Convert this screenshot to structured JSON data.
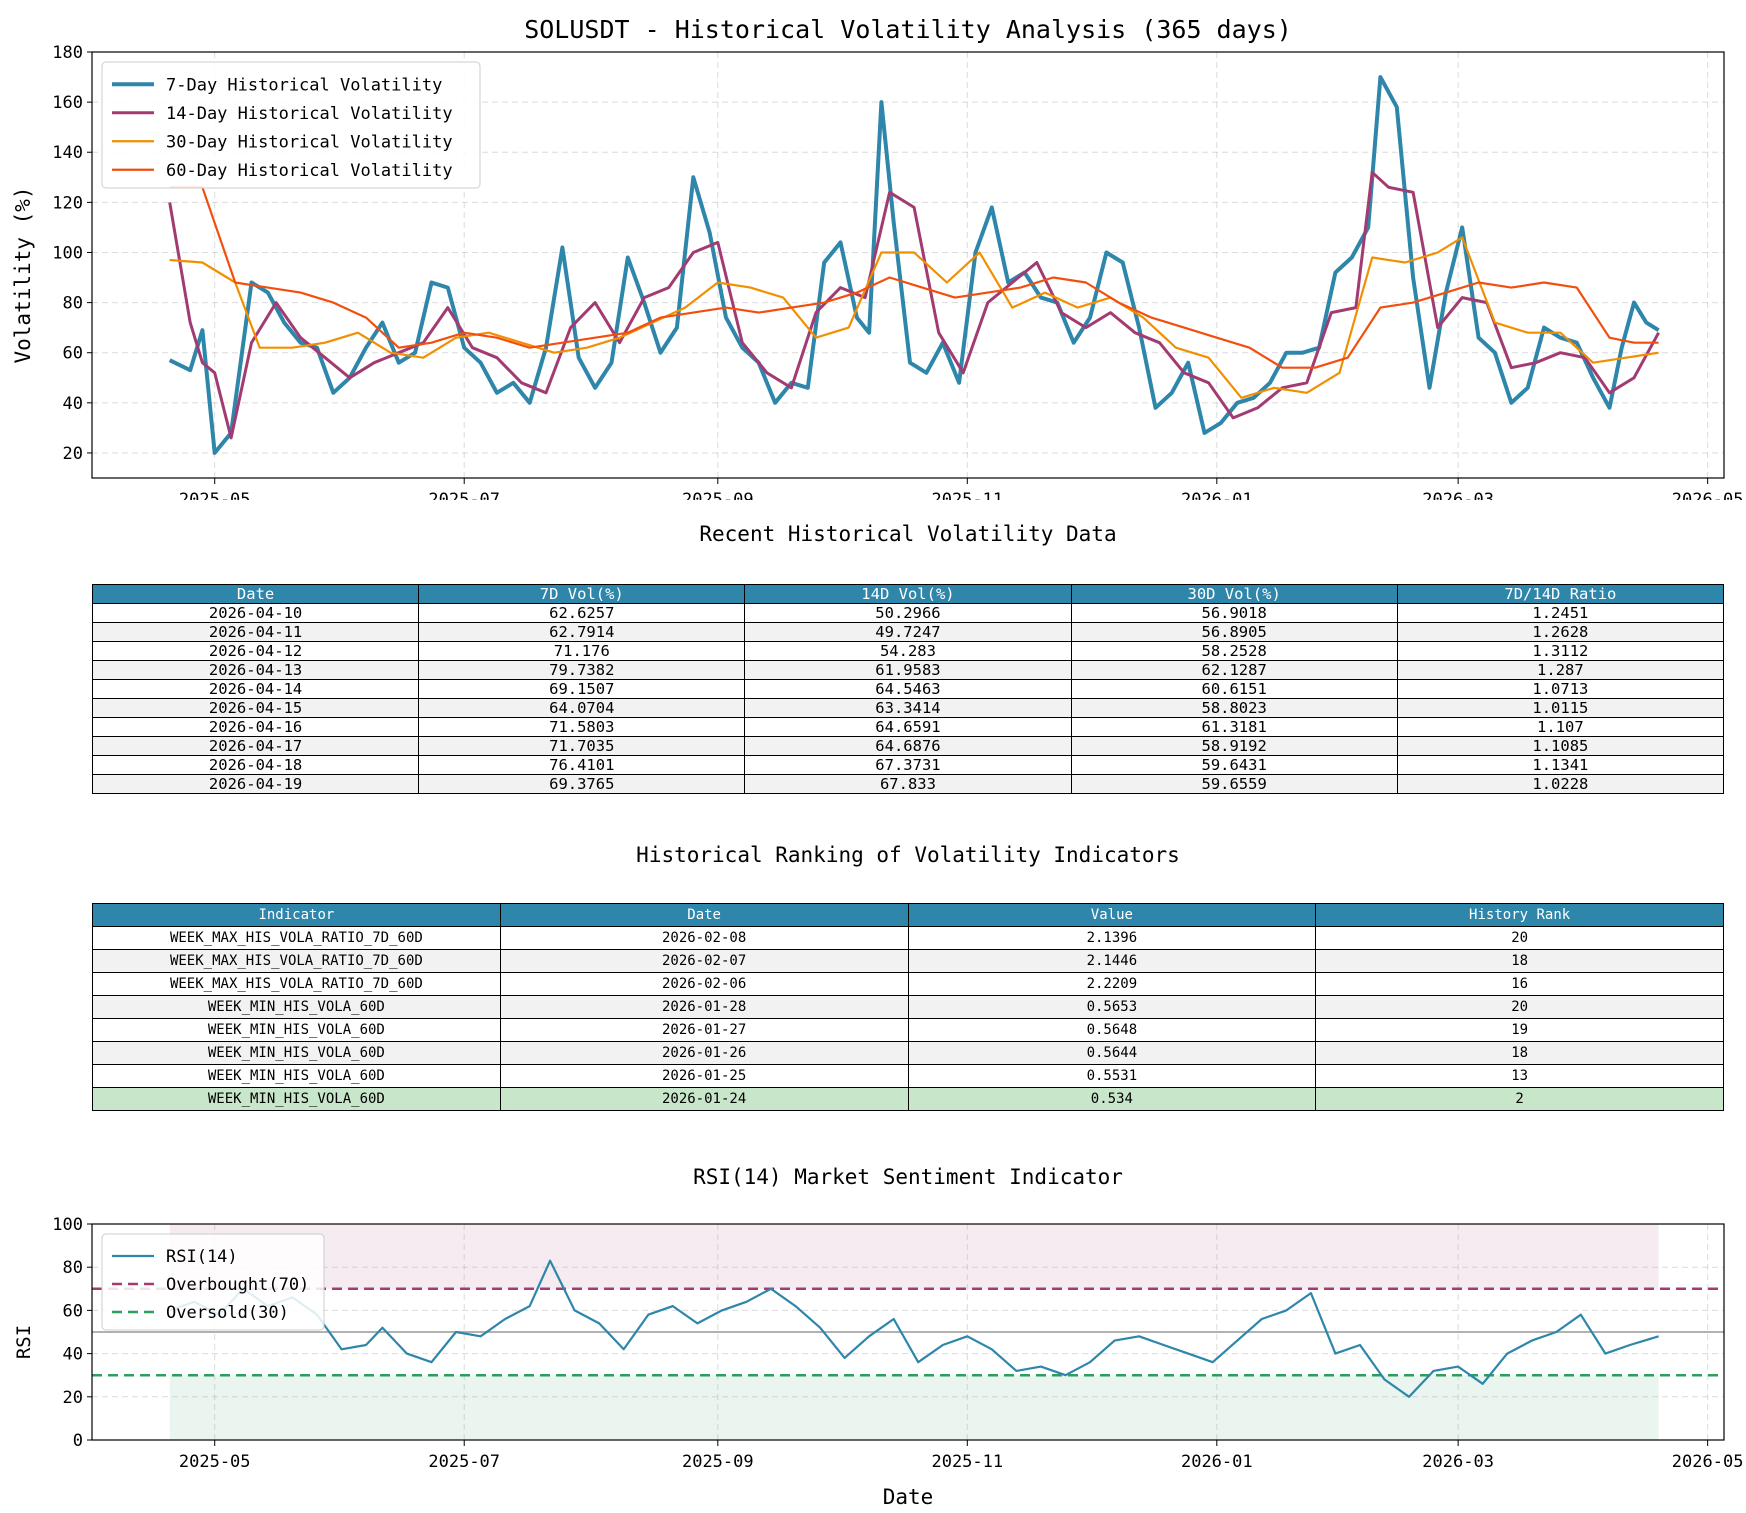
{
  "chart_data": [
    {
      "type": "line",
      "title": "SOLUSDT - Historical Volatility Analysis (365 days)",
      "xlabel": "",
      "ylabel": "Volatility (%)",
      "x_range": [
        "2025-04-01",
        "2026-05-05"
      ],
      "ylim": [
        10,
        180
      ],
      "yticks": [
        20,
        40,
        60,
        80,
        100,
        120,
        140,
        160,
        180
      ],
      "xticks": [
        "2025-05",
        "2025-07",
        "2025-09",
        "2025-11",
        "2026-01",
        "2026-03",
        "2026-05"
      ],
      "grid": true,
      "legend": "top-left",
      "series": [
        {
          "name": "7-Day Historical Volatility",
          "color": "#2e86ab",
          "x": [
            "2025-04-20",
            "2025-04-25",
            "2025-04-28",
            "2025-05-01",
            "2025-05-05",
            "2025-05-10",
            "2025-05-14",
            "2025-05-18",
            "2025-05-22",
            "2025-05-26",
            "2025-05-30",
            "2025-06-03",
            "2025-06-07",
            "2025-06-11",
            "2025-06-15",
            "2025-06-19",
            "2025-06-23",
            "2025-06-27",
            "2025-07-01",
            "2025-07-05",
            "2025-07-09",
            "2025-07-13",
            "2025-07-17",
            "2025-07-21",
            "2025-07-25",
            "2025-07-29",
            "2025-08-02",
            "2025-08-06",
            "2025-08-10",
            "2025-08-14",
            "2025-08-18",
            "2025-08-22",
            "2025-08-26",
            "2025-08-30",
            "2025-09-03",
            "2025-09-07",
            "2025-09-11",
            "2025-09-15",
            "2025-09-19",
            "2025-09-23",
            "2025-09-27",
            "2025-10-01",
            "2025-10-05",
            "2025-10-08",
            "2025-10-11",
            "2025-10-14",
            "2025-10-18",
            "2025-10-22",
            "2025-10-26",
            "2025-10-30",
            "2025-11-03",
            "2025-11-07",
            "2025-11-11",
            "2025-11-15",
            "2025-11-19",
            "2025-11-23",
            "2025-11-27",
            "2025-12-01",
            "2025-12-05",
            "2025-12-09",
            "2025-12-13",
            "2025-12-17",
            "2025-12-21",
            "2025-12-25",
            "2025-12-29",
            "2026-01-02",
            "2026-01-06",
            "2026-01-10",
            "2026-01-14",
            "2026-01-18",
            "2026-01-22",
            "2026-01-26",
            "2026-01-30",
            "2026-02-03",
            "2026-02-07",
            "2026-02-10",
            "2026-02-14",
            "2026-02-18",
            "2026-02-22",
            "2026-02-26",
            "2026-03-02",
            "2026-03-06",
            "2026-03-10",
            "2026-03-14",
            "2026-03-18",
            "2026-03-22",
            "2026-03-26",
            "2026-03-30",
            "2026-04-03",
            "2026-04-07",
            "2026-04-10",
            "2026-04-13",
            "2026-04-16",
            "2026-04-19"
          ],
          "y": [
            57,
            53,
            69,
            20,
            28,
            88,
            84,
            72,
            64,
            62,
            44,
            50,
            62,
            72,
            56,
            60,
            88,
            86,
            62,
            56,
            44,
            48,
            40,
            62,
            102,
            58,
            46,
            56,
            98,
            80,
            60,
            70,
            130,
            108,
            74,
            62,
            56,
            40,
            48,
            46,
            96,
            104,
            74,
            68,
            160,
            112,
            56,
            52,
            64,
            48,
            100,
            118,
            88,
            92,
            82,
            80,
            64,
            74,
            100,
            96,
            70,
            38,
            44,
            56,
            28,
            32,
            40,
            42,
            48,
            60,
            60,
            62,
            92,
            98,
            110,
            170,
            158,
            90,
            46,
            84,
            110,
            66,
            60,
            40,
            46,
            70,
            66,
            64,
            50,
            38,
            62,
            80,
            72,
            69
          ]
        },
        {
          "name": "14-Day Historical Volatility",
          "color": "#a23b72",
          "x": [
            "2025-04-20",
            "2025-04-25",
            "2025-04-28",
            "2025-05-01",
            "2025-05-05",
            "2025-05-10",
            "2025-05-16",
            "2025-05-22",
            "2025-05-28",
            "2025-06-03",
            "2025-06-09",
            "2025-06-15",
            "2025-06-21",
            "2025-06-27",
            "2025-07-03",
            "2025-07-09",
            "2025-07-15",
            "2025-07-21",
            "2025-07-27",
            "2025-08-02",
            "2025-08-08",
            "2025-08-14",
            "2025-08-20",
            "2025-08-26",
            "2025-09-01",
            "2025-09-07",
            "2025-09-13",
            "2025-09-19",
            "2025-09-25",
            "2025-10-01",
            "2025-10-07",
            "2025-10-13",
            "2025-10-19",
            "2025-10-25",
            "2025-10-31",
            "2025-11-06",
            "2025-11-12",
            "2025-11-18",
            "2025-11-24",
            "2025-11-30",
            "2025-12-06",
            "2025-12-12",
            "2025-12-18",
            "2025-12-24",
            "2025-12-30",
            "2026-01-05",
            "2026-01-11",
            "2026-01-17",
            "2026-01-23",
            "2026-01-29",
            "2026-02-04",
            "2026-02-08",
            "2026-02-12",
            "2026-02-18",
            "2026-02-24",
            "2026-03-02",
            "2026-03-08",
            "2026-03-14",
            "2026-03-20",
            "2026-03-26",
            "2026-04-01",
            "2026-04-07",
            "2026-04-13",
            "2026-04-19"
          ],
          "y": [
            120,
            72,
            56,
            52,
            26,
            64,
            80,
            66,
            58,
            50,
            56,
            60,
            64,
            78,
            62,
            58,
            48,
            44,
            70,
            80,
            64,
            82,
            86,
            100,
            104,
            64,
            52,
            46,
            76,
            86,
            82,
            124,
            118,
            68,
            52,
            80,
            88,
            96,
            76,
            70,
            76,
            68,
            64,
            52,
            48,
            34,
            38,
            46,
            48,
            76,
            78,
            132,
            126,
            124,
            70,
            82,
            80,
            54,
            56,
            60,
            58,
            44,
            50,
            68
          ]
        },
        {
          "name": "30-Day Historical Volatility",
          "color": "#f18f01",
          "x": [
            "2025-04-20",
            "2025-04-28",
            "2025-05-06",
            "2025-05-12",
            "2025-05-20",
            "2025-05-28",
            "2025-06-05",
            "2025-06-13",
            "2025-06-21",
            "2025-06-29",
            "2025-07-07",
            "2025-07-15",
            "2025-07-23",
            "2025-07-31",
            "2025-08-08",
            "2025-08-16",
            "2025-08-24",
            "2025-09-01",
            "2025-09-09",
            "2025-09-17",
            "2025-09-25",
            "2025-10-03",
            "2025-10-11",
            "2025-10-19",
            "2025-10-27",
            "2025-11-04",
            "2025-11-12",
            "2025-11-20",
            "2025-11-28",
            "2025-12-06",
            "2025-12-14",
            "2025-12-22",
            "2025-12-30",
            "2026-01-07",
            "2026-01-15",
            "2026-01-23",
            "2026-01-31",
            "2026-02-08",
            "2026-02-16",
            "2026-02-24",
            "2026-03-02",
            "2026-03-10",
            "2026-03-18",
            "2026-03-26",
            "2026-04-03",
            "2026-04-11",
            "2026-04-19"
          ],
          "y": [
            97,
            96,
            88,
            62,
            62,
            64,
            68,
            60,
            58,
            66,
            68,
            64,
            60,
            62,
            66,
            72,
            78,
            88,
            86,
            82,
            66,
            70,
            100,
            100,
            88,
            100,
            78,
            84,
            78,
            82,
            74,
            62,
            58,
            42,
            46,
            44,
            52,
            98,
            96,
            100,
            106,
            72,
            68,
            68,
            56,
            58,
            60
          ]
        },
        {
          "name": "60-Day Historical Volatility",
          "color": "#f24f0f",
          "x": [
            "2025-04-20",
            "2025-04-28",
            "2025-05-06",
            "2025-05-14",
            "2025-05-22",
            "2025-05-30",
            "2025-06-07",
            "2025-06-15",
            "2025-06-23",
            "2025-07-01",
            "2025-07-09",
            "2025-07-17",
            "2025-07-25",
            "2025-08-02",
            "2025-08-10",
            "2025-08-18",
            "2025-08-26",
            "2025-09-03",
            "2025-09-11",
            "2025-09-19",
            "2025-09-27",
            "2025-10-05",
            "2025-10-13",
            "2025-10-21",
            "2025-10-29",
            "2025-11-06",
            "2025-11-14",
            "2025-11-22",
            "2025-11-30",
            "2025-12-08",
            "2025-12-16",
            "2025-12-24",
            "2026-01-01",
            "2026-01-09",
            "2026-01-17",
            "2026-01-25",
            "2026-02-02",
            "2026-02-10",
            "2026-02-18",
            "2026-02-26",
            "2026-03-06",
            "2026-03-14",
            "2026-03-22",
            "2026-03-30",
            "2026-04-07",
            "2026-04-13",
            "2026-04-19"
          ],
          "y": [
            126,
            126,
            88,
            86,
            84,
            80,
            74,
            62,
            64,
            68,
            66,
            62,
            64,
            66,
            68,
            74,
            76,
            78,
            76,
            78,
            80,
            84,
            90,
            86,
            82,
            84,
            86,
            90,
            88,
            80,
            74,
            70,
            66,
            62,
            54,
            54,
            58,
            78,
            80,
            84,
            88,
            86,
            88,
            86,
            66,
            64,
            64
          ]
        }
      ]
    },
    {
      "type": "line",
      "title": "RSI(14) Market Sentiment Indicator",
      "xlabel": "Date",
      "ylabel": "RSI",
      "x_range": [
        "2025-04-01",
        "2026-05-05"
      ],
      "ylim": [
        0,
        100
      ],
      "yticks": [
        0,
        20,
        40,
        60,
        80,
        100
      ],
      "xticks": [
        "2025-05",
        "2025-07",
        "2025-09",
        "2025-11",
        "2026-01",
        "2026-03",
        "2026-05"
      ],
      "grid": true,
      "legend": "top-left",
      "overbought_zone": [
        70,
        100
      ],
      "oversold_zone": [
        0,
        30
      ],
      "fill_range": [
        "2025-04-20",
        "2026-04-19"
      ],
      "midline": 50,
      "series": [
        {
          "name": "RSI(14)",
          "color": "#2e86ab",
          "x": [
            "2025-04-20",
            "2025-04-26",
            "2025-05-02",
            "2025-05-08",
            "2025-05-14",
            "2025-05-20",
            "2025-05-26",
            "2025-06-01",
            "2025-06-07",
            "2025-06-11",
            "2025-06-17",
            "2025-06-23",
            "2025-06-29",
            "2025-07-05",
            "2025-07-11",
            "2025-07-17",
            "2025-07-22",
            "2025-07-28",
            "2025-08-03",
            "2025-08-09",
            "2025-08-15",
            "2025-08-21",
            "2025-08-27",
            "2025-09-02",
            "2025-09-08",
            "2025-09-14",
            "2025-09-20",
            "2025-09-26",
            "2025-10-02",
            "2025-10-08",
            "2025-10-14",
            "2025-10-20",
            "2025-10-26",
            "2025-11-01",
            "2025-11-07",
            "2025-11-13",
            "2025-11-19",
            "2025-11-25",
            "2025-12-01",
            "2025-12-07",
            "2025-12-13",
            "2025-12-19",
            "2025-12-25",
            "2025-12-31",
            "2026-01-06",
            "2026-01-12",
            "2026-01-18",
            "2026-01-24",
            "2026-01-30",
            "2026-02-05",
            "2026-02-11",
            "2026-02-17",
            "2026-02-23",
            "2026-03-01",
            "2026-03-07",
            "2026-03-13",
            "2026-03-19",
            "2026-03-25",
            "2026-03-31",
            "2026-04-06",
            "2026-04-12",
            "2026-04-19"
          ],
          "y": [
            60,
            64,
            58,
            70,
            62,
            66,
            58,
            42,
            44,
            52,
            40,
            36,
            50,
            48,
            56,
            62,
            83,
            60,
            54,
            42,
            58,
            62,
            54,
            60,
            64,
            70,
            62,
            52,
            38,
            48,
            56,
            36,
            44,
            48,
            42,
            32,
            34,
            30,
            36,
            46,
            48,
            44,
            40,
            36,
            46,
            56,
            60,
            68,
            40,
            44,
            28,
            20,
            32,
            34,
            26,
            40,
            46,
            50,
            58,
            40,
            44,
            48
          ]
        }
      ],
      "hlines": [
        {
          "name": "Overbought(70)",
          "y": 70,
          "color": "#a23b72"
        },
        {
          "name": "Oversold(30)",
          "y": 30,
          "color": "#2e9e5e"
        }
      ]
    }
  ],
  "recent_table": {
    "title": "Recent Historical Volatility Data",
    "header_color": "#2e86ab",
    "columns": [
      "Date",
      "7D Vol(%)",
      "14D Vol(%)",
      "30D Vol(%)",
      "7D/14D Ratio"
    ],
    "rows": [
      [
        "2026-04-10",
        "62.6257",
        "50.2966",
        "56.9018",
        "1.2451"
      ],
      [
        "2026-04-11",
        "62.7914",
        "49.7247",
        "56.8905",
        "1.2628"
      ],
      [
        "2026-04-12",
        "71.176",
        "54.283",
        "58.2528",
        "1.3112"
      ],
      [
        "2026-04-13",
        "79.7382",
        "61.9583",
        "62.1287",
        "1.287"
      ],
      [
        "2026-04-14",
        "69.1507",
        "64.5463",
        "60.6151",
        "1.0713"
      ],
      [
        "2026-04-15",
        "64.0704",
        "63.3414",
        "58.8023",
        "1.0115"
      ],
      [
        "2026-04-16",
        "71.5803",
        "64.6591",
        "61.3181",
        "1.107"
      ],
      [
        "2026-04-17",
        "71.7035",
        "64.6876",
        "58.9192",
        "1.1085"
      ],
      [
        "2026-04-18",
        "76.4101",
        "67.3731",
        "59.6431",
        "1.1341"
      ],
      [
        "2026-04-19",
        "69.3765",
        "67.833",
        "59.6559",
        "1.0228"
      ]
    ]
  },
  "ranking_table": {
    "title": "Historical Ranking of Volatility Indicators",
    "header_color": "#2e86ab",
    "highlight_color": "#c8e6c9",
    "highlight_row": 7,
    "columns": [
      "Indicator",
      "Date",
      "Value",
      "History Rank"
    ],
    "rows": [
      [
        "WEEK_MAX_HIS_VOLA_RATIO_7D_60D",
        "2026-02-08",
        "2.1396",
        "20"
      ],
      [
        "WEEK_MAX_HIS_VOLA_RATIO_7D_60D",
        "2026-02-07",
        "2.1446",
        "18"
      ],
      [
        "WEEK_MAX_HIS_VOLA_RATIO_7D_60D",
        "2026-02-06",
        "2.2209",
        "16"
      ],
      [
        "WEEK_MIN_HIS_VOLA_60D",
        "2026-01-28",
        "0.5653",
        "20"
      ],
      [
        "WEEK_MIN_HIS_VOLA_60D",
        "2026-01-27",
        "0.5648",
        "19"
      ],
      [
        "WEEK_MIN_HIS_VOLA_60D",
        "2026-01-26",
        "0.5644",
        "18"
      ],
      [
        "WEEK_MIN_HIS_VOLA_60D",
        "2026-01-25",
        "0.5531",
        "13"
      ],
      [
        "WEEK_MIN_HIS_VOLA_60D",
        "2026-01-24",
        "0.534",
        "2"
      ]
    ]
  }
}
